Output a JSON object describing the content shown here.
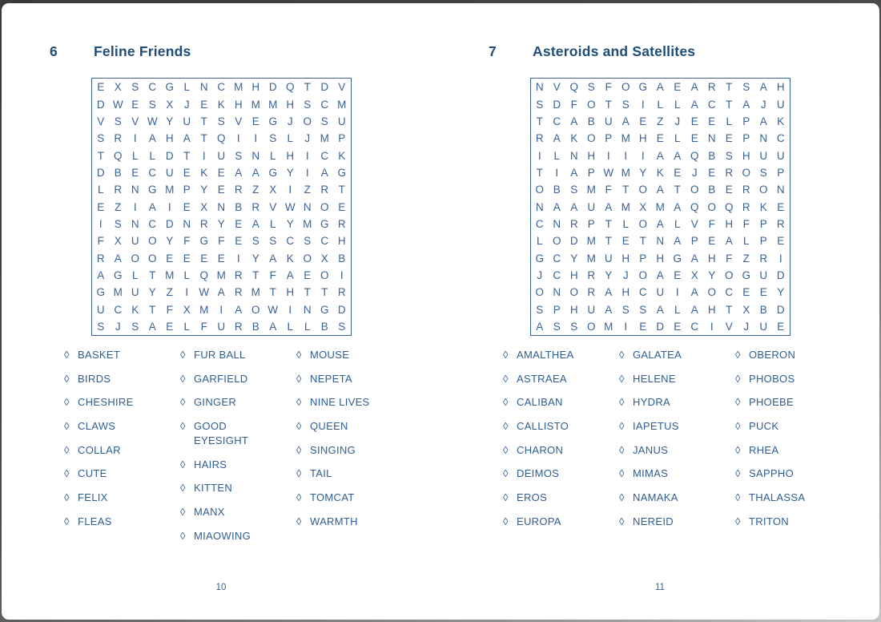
{
  "icons": {
    "diamond_bullet": "◊"
  },
  "colors": {
    "title_blue": "#1F4E79",
    "text_blue": "#2F5E92",
    "grid_blue": "#3A6395",
    "page_background": "#ffffff",
    "edge_dark": "#3a3a3a"
  },
  "puzzles": [
    {
      "number": "6",
      "title": "Feline Friends",
      "page_number": "10",
      "grid_rows": [
        "EXSCGLNCMHDQTDV",
        "DWESXJEKHMMHSCM",
        "VSVWYUTSVEGJOSU",
        "SRIAHATQIISLJMP",
        "TQLLDTIUSNLHICK",
        "DBECUEKEAAGYIAG",
        "LRNGMPYERZXIZRT",
        "EZIAIEXNBRVWNOE",
        "ISNCDNRYEALYMGR",
        "FXUOYFGFESSCSCH",
        "RAOOEEEEIYAKOXB",
        "AGLTMLQMRTFAEOI",
        "GMUYZIWARMTHTTR",
        "UCKTFXMIAOWINGD",
        "SJSAELFURBALLBS"
      ],
      "word_columns": [
        [
          "BASKET",
          "BIRDS",
          "CHESHIRE",
          "CLAWS",
          "COLLAR",
          "CUTE",
          "FELIX",
          "FLEAS"
        ],
        [
          "FUR BALL",
          "GARFIELD",
          "GINGER",
          "GOOD EYESIGHT",
          "HAIRS",
          "KITTEN",
          "MANX",
          "MIAOWING"
        ],
        [
          "MOUSE",
          "NEPETA",
          "NINE LIVES",
          "QUEEN",
          "SINGING",
          "TAIL",
          "TOMCAT",
          "WARMTH"
        ]
      ]
    },
    {
      "number": "7",
      "title": "Asteroids and Satellites",
      "page_number": "11",
      "grid_rows": [
        "NVQSFOGAEARTSAH",
        "SDFOTSILLACTAJU",
        "TCABUAEZJEELPAK",
        "RAKOPMHELENEPNC",
        "ILNHIIIAAQBSHUU",
        "TIAPWMYKEJEROSP",
        "OBSMFTOATOBERON",
        "NAAUAMXMAQOQRKE",
        "CNRPTLOALVFHFPR",
        "LODMTETNAPEALPE",
        "GCYMUHPHGAHFZRI",
        "JCHRYJOAEXYOGUD",
        "ONORAHCUIAOCEEY",
        "SPHUASSALAHTXBD",
        "ASSOMIEDECIVJUE"
      ],
      "word_columns": [
        [
          "AMALTHEA",
          "ASTRAEA",
          "CALIBAN",
          "CALLISTO",
          "CHARON",
          "DEIMOS",
          "EROS",
          "EUROPA"
        ],
        [
          "GALATEA",
          "HELENE",
          "HYDRA",
          "IAPETUS",
          "JANUS",
          "MIMAS",
          "NAMAKA",
          "NEREID"
        ],
        [
          "OBERON",
          "PHOBOS",
          "PHOEBE",
          "PUCK",
          "RHEA",
          "SAPPHO",
          "THALASSA",
          "TRITON"
        ]
      ]
    }
  ]
}
